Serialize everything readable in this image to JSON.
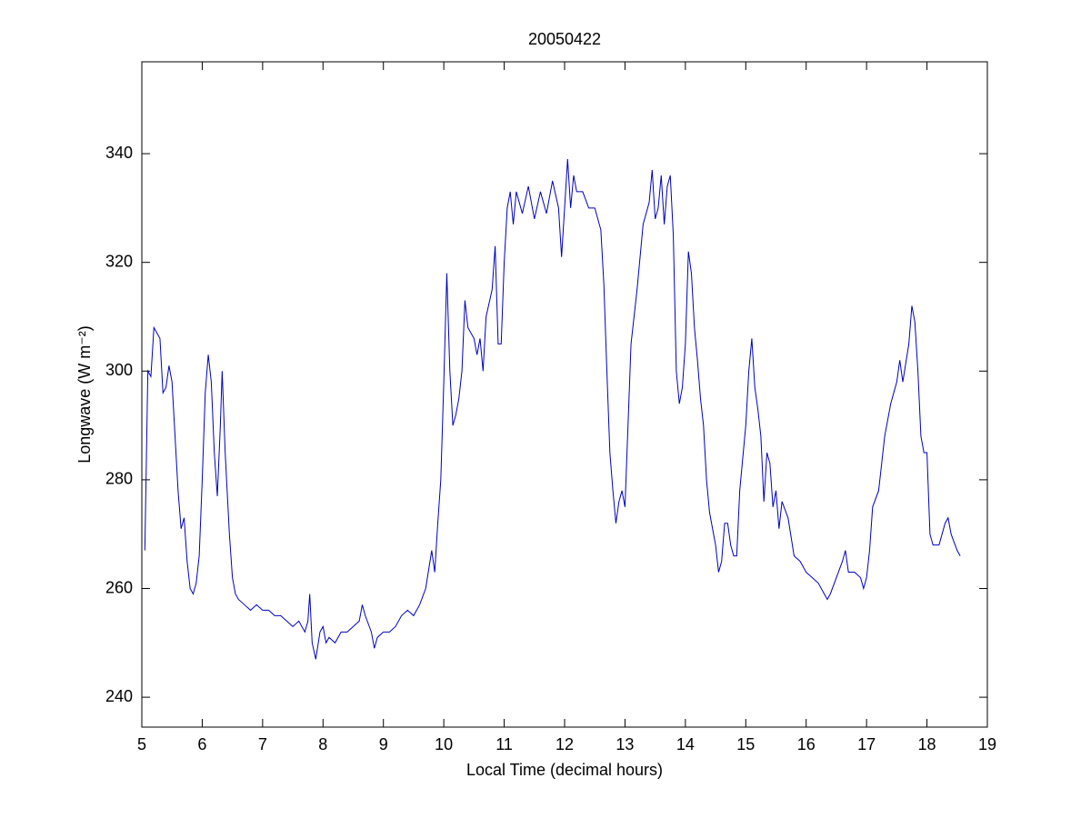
{
  "chart_data": {
    "type": "line",
    "title": "20050422",
    "xlabel": "Local Time (decimal hours)",
    "ylabel": "Longwave (W m⁻²)",
    "xlim": [
      5,
      19
    ],
    "xticks": [
      5,
      6,
      7,
      8,
      9,
      10,
      11,
      12,
      13,
      14,
      15,
      16,
      17,
      18,
      19
    ],
    "ylim": [
      234.5,
      356.9
    ],
    "yticks": [
      240,
      260,
      280,
      300,
      320,
      340
    ],
    "grid": false,
    "series": [
      {
        "name": "Longwave",
        "color": "#0000c0",
        "x": [
          5.05,
          5.1,
          5.15,
          5.2,
          5.25,
          5.3,
          5.35,
          5.4,
          5.45,
          5.5,
          5.55,
          5.6,
          5.65,
          5.7,
          5.75,
          5.8,
          5.85,
          5.9,
          5.95,
          6.0,
          6.05,
          6.1,
          6.15,
          6.2,
          6.25,
          6.3,
          6.33,
          6.38,
          6.45,
          6.5,
          6.55,
          6.6,
          6.7,
          6.8,
          6.9,
          7.0,
          7.1,
          7.2,
          7.3,
          7.4,
          7.5,
          7.6,
          7.7,
          7.75,
          7.78,
          7.82,
          7.88,
          7.95,
          8.0,
          8.05,
          8.1,
          8.2,
          8.3,
          8.4,
          8.5,
          8.6,
          8.65,
          8.7,
          8.8,
          8.85,
          8.9,
          9.0,
          9.1,
          9.2,
          9.3,
          9.4,
          9.5,
          9.6,
          9.7,
          9.8,
          9.85,
          9.9,
          9.95,
          10.0,
          10.05,
          10.1,
          10.15,
          10.2,
          10.25,
          10.3,
          10.35,
          10.4,
          10.5,
          10.55,
          10.6,
          10.65,
          10.7,
          10.8,
          10.85,
          10.9,
          10.95,
          11.0,
          11.05,
          11.1,
          11.15,
          11.2,
          11.3,
          11.4,
          11.5,
          11.6,
          11.7,
          11.8,
          11.9,
          11.95,
          12.0,
          12.05,
          12.1,
          12.15,
          12.2,
          12.3,
          12.4,
          12.5,
          12.6,
          12.65,
          12.7,
          12.75,
          12.8,
          12.85,
          12.9,
          12.95,
          13.0,
          13.05,
          13.1,
          13.2,
          13.3,
          13.4,
          13.45,
          13.5,
          13.55,
          13.6,
          13.65,
          13.7,
          13.75,
          13.8,
          13.85,
          13.9,
          13.95,
          14.0,
          14.05,
          14.1,
          14.15,
          14.2,
          14.25,
          14.3,
          14.35,
          14.4,
          14.5,
          14.55,
          14.6,
          14.65,
          14.7,
          14.75,
          14.8,
          14.85,
          14.9,
          15.0,
          15.05,
          15.1,
          15.15,
          15.2,
          15.25,
          15.3,
          15.35,
          15.4,
          15.45,
          15.5,
          15.55,
          15.6,
          15.7,
          15.8,
          15.9,
          16.0,
          16.1,
          16.2,
          16.3,
          16.35,
          16.4,
          16.5,
          16.6,
          16.65,
          16.7,
          16.8,
          16.9,
          16.95,
          17.0,
          17.05,
          17.1,
          17.2,
          17.3,
          17.4,
          17.5,
          17.55,
          17.6,
          17.7,
          17.75,
          17.8,
          17.85,
          17.9,
          17.95,
          18.0,
          18.05,
          18.1,
          18.2,
          18.3,
          18.35,
          18.4,
          18.5,
          18.55
        ],
        "values": [
          267,
          300,
          299,
          308,
          307,
          306,
          296,
          297,
          301,
          298,
          288,
          278,
          271,
          273,
          265,
          260,
          259,
          261,
          266,
          280,
          296,
          303,
          298,
          285,
          277,
          290,
          300,
          285,
          270,
          262,
          259,
          258,
          257,
          256,
          257,
          256,
          256,
          255,
          255,
          254,
          253,
          254,
          252,
          254,
          259,
          250,
          247,
          252,
          253,
          250,
          251,
          250,
          252,
          252,
          253,
          254,
          257,
          255,
          252,
          249,
          251,
          252,
          252,
          253,
          255,
          256,
          255,
          257,
          260,
          267,
          263,
          272,
          280,
          298,
          318,
          300,
          290,
          292,
          295,
          300,
          313,
          308,
          306,
          303,
          306,
          300,
          310,
          315,
          323,
          305,
          305,
          320,
          330,
          333,
          327,
          333,
          329,
          334,
          328,
          333,
          329,
          335,
          330,
          321,
          330,
          339,
          330,
          336,
          333,
          333,
          330,
          330,
          326,
          316,
          300,
          285,
          278,
          272,
          276,
          278,
          275,
          290,
          305,
          315,
          327,
          331,
          337,
          328,
          330,
          336,
          327,
          334,
          336,
          325,
          300,
          294,
          297,
          305,
          322,
          318,
          308,
          302,
          295,
          290,
          280,
          274,
          268,
          263,
          265,
          272,
          272,
          268,
          266,
          266,
          278,
          290,
          300,
          306,
          297,
          293,
          288,
          276,
          285,
          283,
          275,
          278,
          271,
          276,
          273,
          266,
          265,
          263,
          262,
          261,
          259,
          258,
          259,
          262,
          265,
          267,
          263,
          263,
          262,
          260,
          262,
          267,
          275,
          278,
          288,
          294,
          298,
          302,
          298,
          305,
          312,
          309,
          300,
          288,
          285,
          285,
          270,
          268,
          268,
          272,
          273,
          270,
          267,
          266
        ]
      }
    ]
  }
}
